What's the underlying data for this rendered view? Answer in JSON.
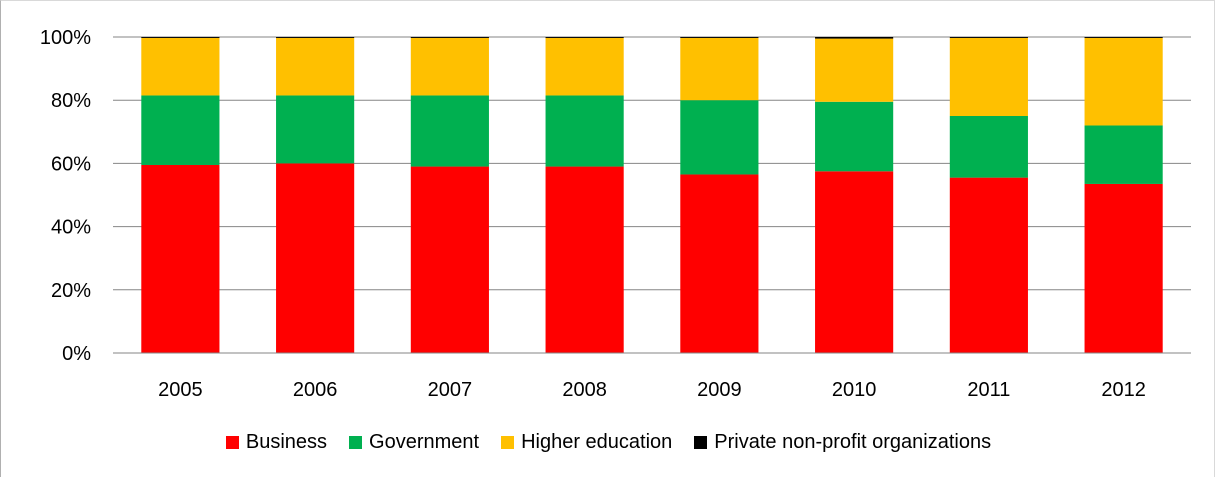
{
  "chart_data": {
    "type": "bar",
    "stacked": true,
    "percent_scale": true,
    "categories": [
      "2005",
      "2006",
      "2007",
      "2008",
      "2009",
      "2010",
      "2011",
      "2012"
    ],
    "series": [
      {
        "name": "Business",
        "color": "#ff0000",
        "values": [
          59.5,
          60,
          59,
          59,
          56.5,
          57.5,
          55.5,
          53.5
        ]
      },
      {
        "name": "Government",
        "color": "#00b050",
        "values": [
          22,
          21.5,
          22.5,
          22.5,
          23.5,
          22,
          19.5,
          18.5
        ]
      },
      {
        "name": "Higher education",
        "color": "#ffc000",
        "values": [
          18.2,
          18.2,
          18.2,
          18.2,
          19.7,
          20,
          24.7,
          27.7
        ]
      },
      {
        "name": "Private non-profit organizations",
        "color": "#000000",
        "values": [
          0.3,
          0.3,
          0.3,
          0.3,
          0.3,
          0.5,
          0.3,
          0.3
        ]
      }
    ],
    "y_ticks": [
      "0%",
      "20%",
      "40%",
      "60%",
      "80%",
      "100%"
    ],
    "ylim": [
      0,
      100
    ],
    "grid": true,
    "legend_position": "bottom"
  }
}
